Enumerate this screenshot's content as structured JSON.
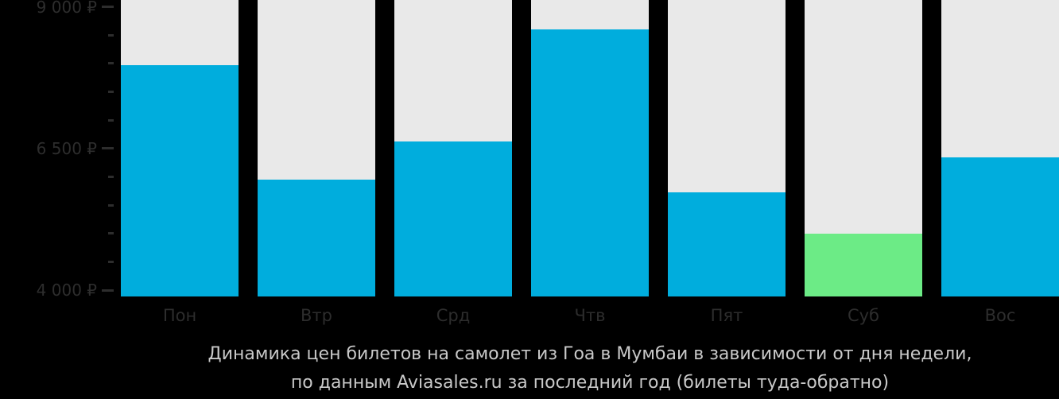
{
  "background_color": "#000000",
  "caption": {
    "line1": "Динамика цен билетов на самолет из Гоа в Мумбаи в зависимости от дня недели,",
    "line2": "по данным Aviasales.ru за последний год (билеты туда-обратно)",
    "color": "#c9c9c9"
  },
  "chart_data": {
    "type": "bar",
    "title": "Динамика цен билетов на самолет из Гоа в Мумбаи в зависимости от дня недели, по данным Aviasales.ru за последний год (билеты туда-обратно)",
    "categories": [
      "Пон",
      "Втр",
      "Срд",
      "Чтв",
      "Пят",
      "Суб",
      "Вос"
    ],
    "values": [
      7970,
      5950,
      6620,
      8600,
      5730,
      5000,
      6340
    ],
    "currency": "₽",
    "min_value_index": 5,
    "y_axis": {
      "major_ticks": [
        {
          "value": 9000,
          "label": "9 000 ₽"
        },
        {
          "value": 6500,
          "label": "6 500 ₽"
        },
        {
          "value": 4000,
          "label": "4 000 ₽"
        }
      ],
      "minor_ticks": [
        8500,
        8000,
        7500,
        7000,
        6000,
        5500,
        5000,
        4500
      ]
    },
    "plot_range": {
      "min": 3890,
      "max": 9120
    },
    "grid": false,
    "legend_position": "none",
    "colors": {
      "bar_fill": "#00addd",
      "bar_fill_min": "#6ceb86",
      "bar_track": "#e9e9e9",
      "axis_text": "#2d2d2d"
    }
  }
}
